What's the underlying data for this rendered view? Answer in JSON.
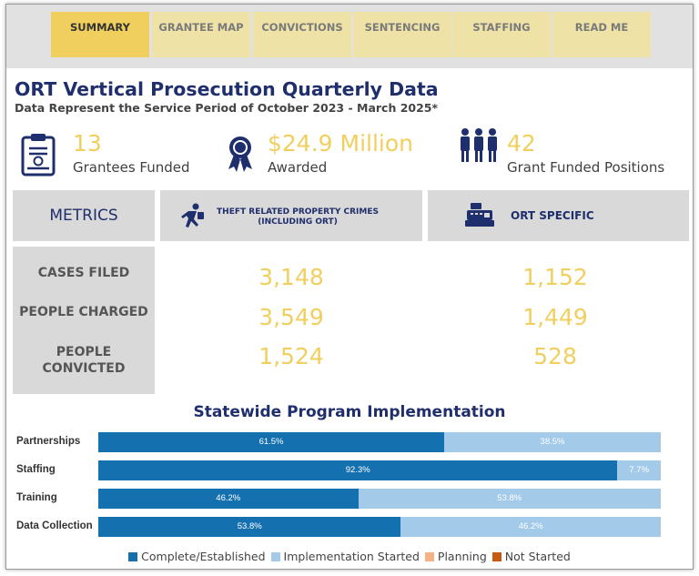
{
  "tabs": [
    {
      "label": "SUMMARY",
      "active": true
    },
    {
      "label": "GRANTEE MAP",
      "active": false
    },
    {
      "label": "CONVICTIONS",
      "active": false
    },
    {
      "label": "SENTENCING",
      "active": false
    },
    {
      "label": "STAFFING",
      "active": false
    },
    {
      "label": "READ ME",
      "active": false
    }
  ],
  "header": {
    "title": "ORT Vertical Prosecution Quarterly Data",
    "subtitle": "Data Represent the Service Period of October 2023 - March 2025*"
  },
  "kpis": [
    {
      "icon": "clipboard-certificate-icon",
      "value": "13",
      "label": "Grantees Funded"
    },
    {
      "icon": "award-ribbon-icon",
      "value": "$24.9 Million",
      "label": "Awarded"
    },
    {
      "icon": "people-group-icon",
      "value": "42",
      "label": "Grant Funded Positions"
    }
  ],
  "metrics": {
    "header": "METRICS",
    "columns": [
      {
        "icon": "running-thief-icon",
        "label_line1": "THEFT RELATED PROPERTY CRIMES",
        "label_line2": "(INCLUDING ORT)"
      },
      {
        "icon": "cash-register-icon",
        "label_line1": "ORT SPECIFIC"
      }
    ],
    "rows": [
      {
        "label_line1": "CASES FILED",
        "label_line2": "",
        "values": [
          "3,148",
          "1,152"
        ]
      },
      {
        "label_line1": "PEOPLE CHARGED",
        "label_line2": "",
        "values": [
          "3,549",
          "1,449"
        ]
      },
      {
        "label_line1": "PEOPLE",
        "label_line2": "CONVICTED",
        "values": [
          "1,524",
          "528"
        ]
      }
    ]
  },
  "colors": {
    "navy": "#1f2e6c",
    "gold": "#f1cf5e",
    "complete": "#1570b0",
    "started": "#a3cbe9",
    "planning": "#f4b183",
    "not_started": "#c55a11"
  },
  "chart_data": {
    "type": "bar",
    "orientation": "horizontal",
    "stacked": true,
    "title": "Statewide Program Implementation",
    "categories": [
      "Partnerships",
      "Staffing",
      "Training",
      "Data Collection"
    ],
    "series": [
      {
        "name": "Complete/Established",
        "color": "#1570b0",
        "values": [
          61.5,
          92.3,
          46.2,
          53.8
        ],
        "labels": [
          "61.5%",
          "92.3%",
          "46.2%",
          "53.8%"
        ]
      },
      {
        "name": "Implementation Started",
        "color": "#a3cbe9",
        "values": [
          38.5,
          7.7,
          53.8,
          46.2
        ],
        "labels": [
          "38.5%",
          "7.7%",
          "53.8%",
          "46.2%"
        ]
      },
      {
        "name": "Planning",
        "color": "#f4b183",
        "values": [
          0,
          0,
          0,
          0
        ],
        "labels": [
          "",
          "",
          "",
          ""
        ]
      },
      {
        "name": "Not Started",
        "color": "#c55a11",
        "values": [
          0,
          0,
          0,
          0
        ],
        "labels": [
          "",
          "",
          "",
          ""
        ]
      }
    ],
    "xlim": [
      0,
      100
    ],
    "legend": "bottom"
  }
}
